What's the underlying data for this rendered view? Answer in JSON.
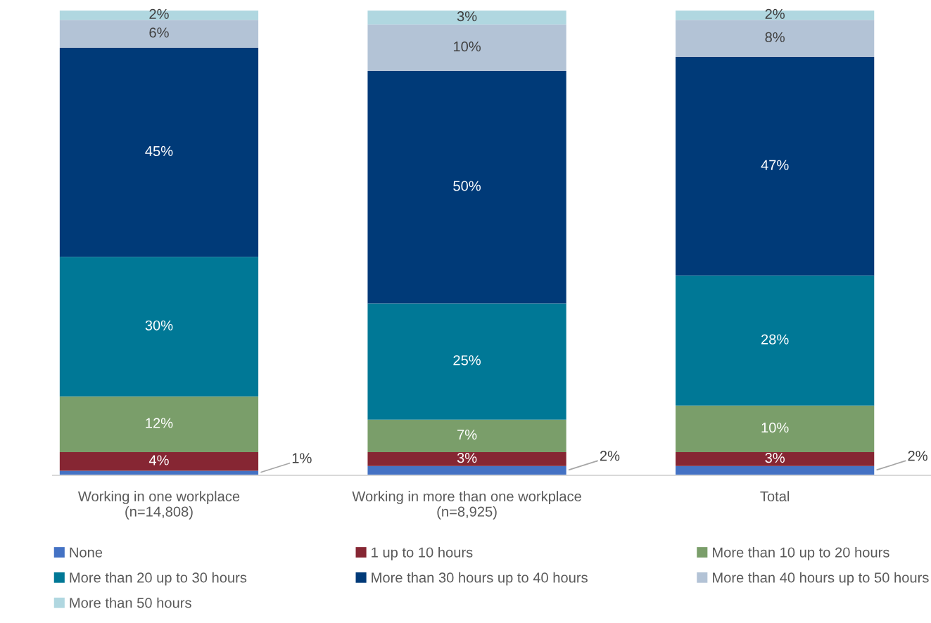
{
  "chart_data": {
    "type": "bar",
    "stacked": true,
    "legend": "bottom",
    "grid": false,
    "categories": [
      "Working in one workplace\n(n=14,808)",
      "Working in more than one workplace\n(n=8,925)",
      "Total"
    ],
    "series": [
      {
        "name": "None",
        "color": "#4472c4",
        "values": [
          1,
          2,
          2
        ],
        "value_labels": [
          "1%",
          "2%",
          "2%"
        ]
      },
      {
        "name": "1 up to 10 hours",
        "color": "#862633",
        "values": [
          4,
          3,
          3
        ],
        "value_labels": [
          "4%",
          "3%",
          "3%"
        ]
      },
      {
        "name": "More than 10 up to 20 hours",
        "color": "#7a9e6a",
        "values": [
          12,
          7,
          10
        ],
        "value_labels": [
          "12%",
          "7%",
          "10%"
        ]
      },
      {
        "name": "More than 20 up to 30 hours",
        "color": "#007896",
        "values": [
          30,
          25,
          28
        ],
        "value_labels": [
          "30%",
          "25%",
          "28%"
        ]
      },
      {
        "name": "More than 30 hours up to 40 hours",
        "color": "#003a78",
        "values": [
          45,
          50,
          47
        ],
        "value_labels": [
          "45%",
          "50%",
          "47%"
        ]
      },
      {
        "name": "More than 40 hours up to 50 hours",
        "color": "#b3c3d6",
        "values": [
          6,
          10,
          8
        ],
        "value_labels": [
          "6%",
          "10%",
          "8%"
        ]
      },
      {
        "name": "More than 50 hours",
        "color": "#b0d7e0",
        "values": [
          2,
          3,
          2
        ],
        "value_labels": [
          "2%",
          "3%",
          "2%"
        ]
      }
    ]
  }
}
